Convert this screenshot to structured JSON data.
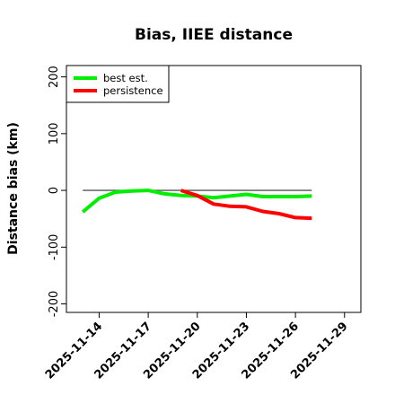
{
  "chart_data": {
    "type": "line",
    "title": "Bias, IIEE distance",
    "xlabel": "",
    "ylabel": "Distance bias (km)",
    "xlim": [
      "2025-11-12",
      "2025-11-30"
    ],
    "ylim": [
      -215,
      220
    ],
    "y_ticks": [
      200,
      100,
      0,
      -100,
      -200
    ],
    "x_ticks": [
      "2025-11-14",
      "2025-11-17",
      "2025-11-20",
      "2025-11-23",
      "2025-11-26",
      "2025-11-29"
    ],
    "reference_line": {
      "y": 0,
      "from": "2025-11-13",
      "to": "2025-11-27",
      "color": "#555555"
    },
    "grid": false,
    "legend_position": "top-left",
    "series": [
      {
        "name": "best est.",
        "color": "#00ee00",
        "points": [
          [
            "2025-11-13",
            -38
          ],
          [
            "2025-11-14",
            -14
          ],
          [
            "2025-11-15",
            -3
          ],
          [
            "2025-11-16",
            -1
          ],
          [
            "2025-11-17",
            0
          ],
          [
            "2025-11-18",
            -6
          ],
          [
            "2025-11-19",
            -9
          ],
          [
            "2025-11-20",
            -10
          ],
          [
            "2025-11-21",
            -13
          ],
          [
            "2025-11-22",
            -10
          ],
          [
            "2025-11-23",
            -7
          ],
          [
            "2025-11-24",
            -11
          ],
          [
            "2025-11-25",
            -11
          ],
          [
            "2025-11-26",
            -11
          ],
          [
            "2025-11-27",
            -10
          ]
        ]
      },
      {
        "name": "persistence",
        "color": "#ff0000",
        "points": [
          [
            "2025-11-19",
            0
          ],
          [
            "2025-11-20",
            -9
          ],
          [
            "2025-11-21",
            -24
          ],
          [
            "2025-11-22",
            -28
          ],
          [
            "2025-11-23",
            -29
          ],
          [
            "2025-11-24",
            -37
          ],
          [
            "2025-11-25",
            -41
          ],
          [
            "2025-11-26",
            -48
          ],
          [
            "2025-11-27",
            -49
          ]
        ]
      }
    ]
  }
}
